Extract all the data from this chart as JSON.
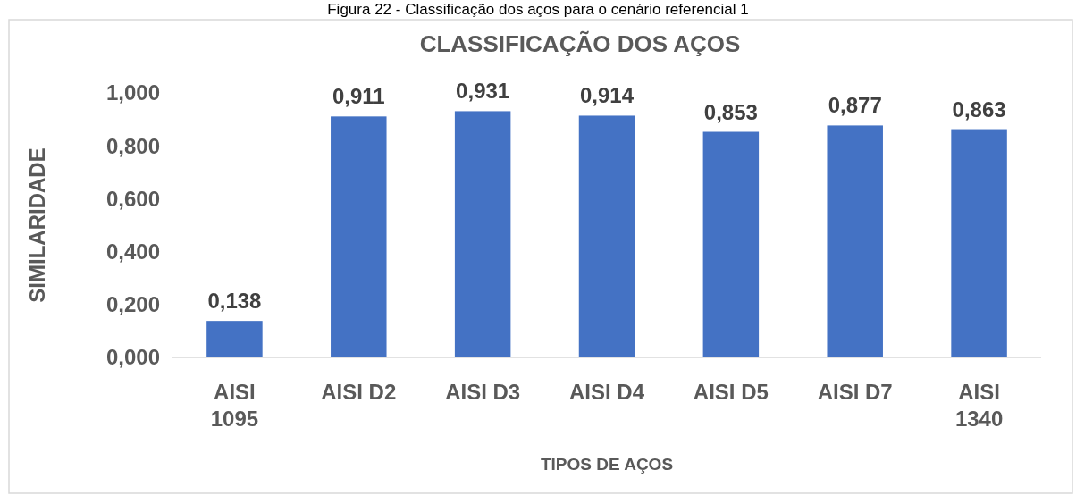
{
  "chart_data": {
    "type": "bar",
    "title": "CLASSIFICAÇÃO DOS AÇOS",
    "xlabel": "TIPOS DE AÇOS",
    "ylabel": "SIMILARIDADE",
    "annotations": [
      "Figura 22 - Classificação dos aços para o cenário referencial 1"
    ],
    "categories": [
      "AISI\n1095",
      "AISI D2",
      "AISI D3",
      "AISI D4",
      "AISI D5",
      "AISI D7",
      "AISI\n1340"
    ],
    "values": [
      0.138,
      0.911,
      0.931,
      0.914,
      0.853,
      0.877,
      0.863
    ],
    "value_labels": [
      "0,138",
      "0,911",
      "0,931",
      "0,914",
      "0,853",
      "0,877",
      "0,863"
    ],
    "color": "#4472c4",
    "ylim": [
      0,
      1
    ],
    "yticks": [
      {
        "value": 0,
        "label": "0,000"
      },
      {
        "value": 0.2,
        "label": "0,200"
      },
      {
        "value": 0.4,
        "label": "0,400"
      },
      {
        "value": 0.6,
        "label": "0,600"
      },
      {
        "value": 0.8,
        "label": "0,800"
      },
      {
        "value": 1,
        "label": "1,000"
      }
    ],
    "grid": false
  }
}
